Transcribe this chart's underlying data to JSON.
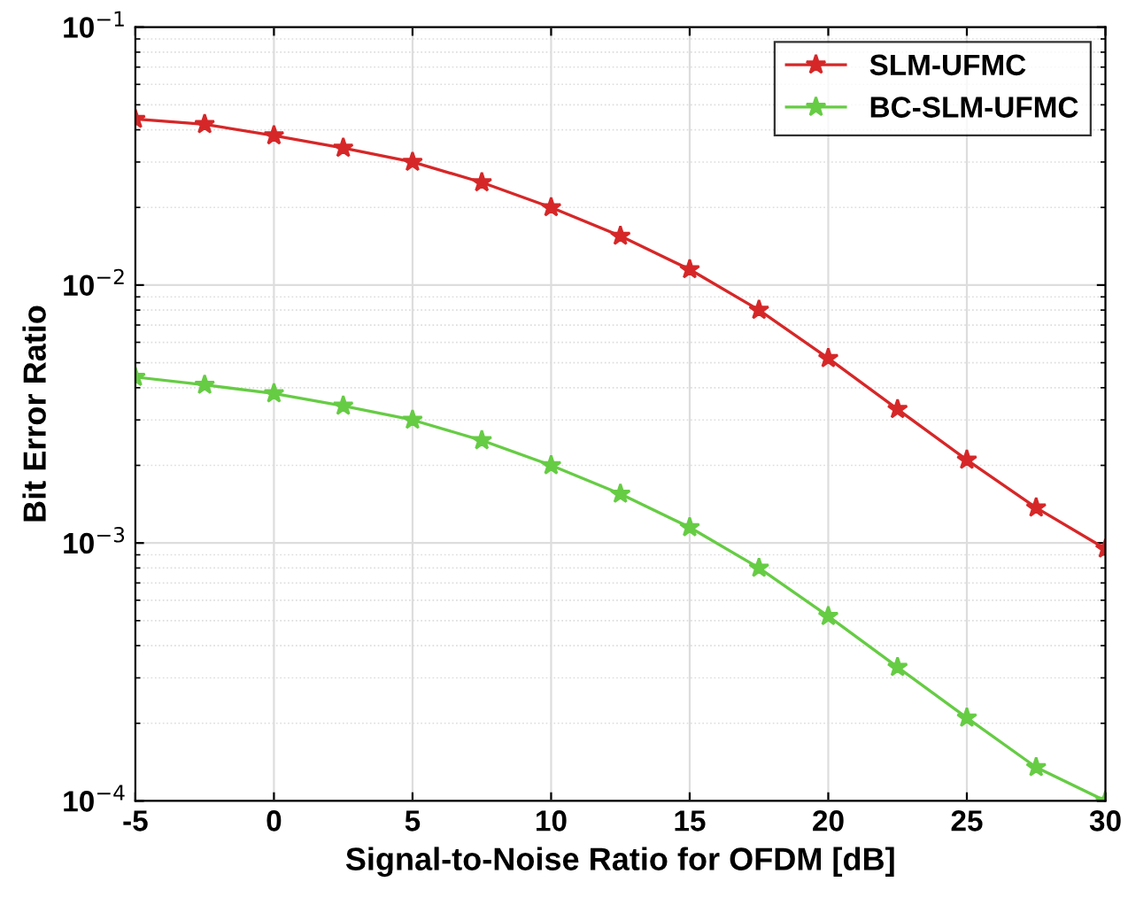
{
  "chart_data": {
    "type": "line",
    "xlabel": "Signal-to-Noise Ratio for OFDM [dB]",
    "ylabel": "Bit Error Ratio",
    "x": [
      -5,
      -2.5,
      0,
      2.5,
      5,
      7.5,
      10,
      12.5,
      15,
      17.5,
      20,
      22.5,
      25,
      27.5,
      30
    ],
    "series": [
      {
        "name": "SLM-UFMC",
        "color": "#d62728",
        "values": [
          0.044,
          0.042,
          0.038,
          0.034,
          0.03,
          0.025,
          0.02,
          0.0155,
          0.0115,
          0.008,
          0.0052,
          0.0033,
          0.0021,
          0.00137,
          0.00095
        ]
      },
      {
        "name": "BC-SLM-UFMC",
        "color": "#66cc44",
        "values": [
          0.0044,
          0.0041,
          0.0038,
          0.0034,
          0.003,
          0.0025,
          0.002,
          0.00155,
          0.00115,
          0.0008,
          0.00052,
          0.00033,
          0.00021,
          0.000135,
          0.0001
        ]
      }
    ],
    "log": "y",
    "xlim": [
      -5,
      30
    ],
    "ylim": [
      0.0001,
      0.1
    ],
    "xticks": [
      {
        "value": -5,
        "label": "-5"
      },
      0,
      5,
      10,
      15,
      20,
      25,
      30
    ],
    "yticks": [
      {
        "value": 0.0001,
        "label": "10$^{−4}$"
      },
      {
        "value": 0.001,
        "label": "10$^{−3}$"
      },
      {
        "value": 0.01,
        "label": "10$^{−2}$"
      },
      {
        "value": 0.1,
        "label": "10$^{−1}$"
      }
    ],
    "grid": true,
    "legend": "top right",
    "marker": "star",
    "line_style": "solid"
  }
}
